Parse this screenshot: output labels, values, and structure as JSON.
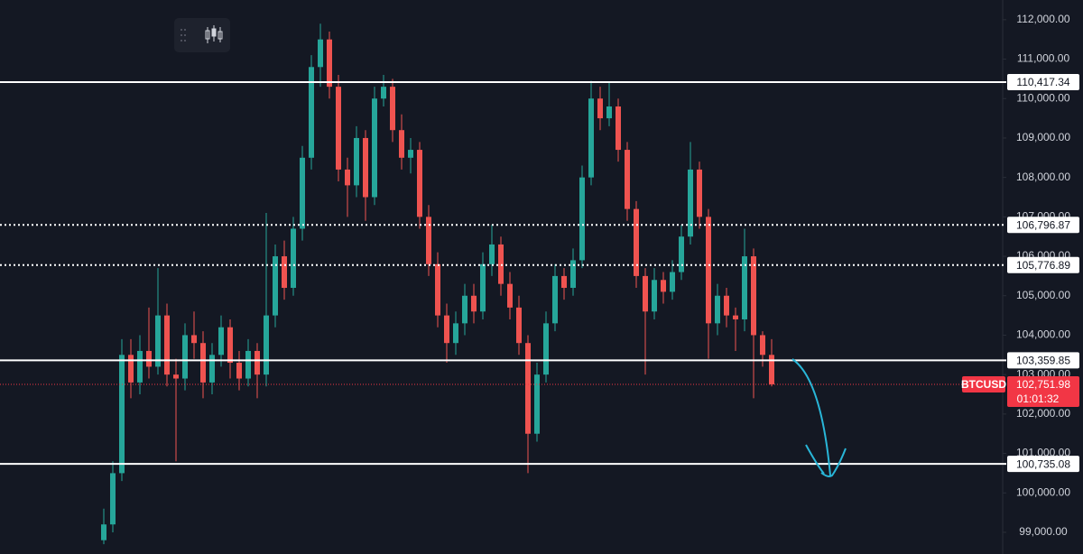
{
  "chart_data": {
    "type": "candlestick",
    "ylim": [
      98450,
      112500
    ],
    "yticks": [
      {
        "value": 112000,
        "label": "112,000.00"
      },
      {
        "value": 111000,
        "label": "111,000.00"
      },
      {
        "value": 110000,
        "label": "110,000.00"
      },
      {
        "value": 109000,
        "label": "109,000.00"
      },
      {
        "value": 108000,
        "label": "108,000.00"
      },
      {
        "value": 107000,
        "label": "107,000.00"
      },
      {
        "value": 106000,
        "label": "106,000.00"
      },
      {
        "value": 105000,
        "label": "105,000.00"
      },
      {
        "value": 104000,
        "label": "104,000.00"
      },
      {
        "value": 103000,
        "label": "103,000.00"
      },
      {
        "value": 102000,
        "label": "102,000.00"
      },
      {
        "value": 101000,
        "label": "101,000.00"
      },
      {
        "value": 100000,
        "label": "100,000.00"
      },
      {
        "value": 99000,
        "label": "99,000.00"
      }
    ],
    "up_color": "#26a69a",
    "down_color": "#ef5350",
    "open": [
      98800,
      99200,
      100500,
      103500,
      102800,
      103600,
      103200,
      104500,
      103000,
      102900,
      104000,
      103800,
      102800,
      103500,
      104200,
      103300,
      102900,
      103600,
      103000,
      104500,
      106000,
      105200,
      106700,
      108500,
      110800,
      111500,
      110300,
      108200,
      107800,
      109000,
      107500,
      110000,
      110300,
      109200,
      108500,
      108700,
      107000,
      105800,
      104500,
      103800,
      104300,
      105000,
      104600,
      105800,
      106300,
      105300,
      104700,
      103800,
      101500,
      103000,
      104300,
      105500,
      105200,
      105900,
      108000,
      110000,
      109500,
      109800,
      108700,
      107200,
      105500,
      104600,
      105400,
      105100,
      105600,
      106500,
      108200,
      107000,
      104300,
      105000,
      104500,
      104400,
      106000,
      104000,
      103500
    ],
    "high": [
      99600,
      100800,
      103900,
      103900,
      104000,
      104700,
      105700,
      104800,
      103400,
      104300,
      104600,
      104100,
      103800,
      104500,
      104400,
      103600,
      103900,
      103800,
      107100,
      106300,
      106400,
      107000,
      108800,
      111100,
      111900,
      111700,
      110600,
      108500,
      109300,
      109200,
      110300,
      110600,
      110500,
      109600,
      109000,
      108900,
      107300,
      106100,
      104800,
      104600,
      105300,
      105300,
      106100,
      106800,
      106500,
      105600,
      105000,
      104000,
      103300,
      104600,
      105800,
      105700,
      106200,
      108300,
      110450,
      110300,
      110400,
      110000,
      108900,
      107400,
      105700,
      105700,
      105600,
      105900,
      106800,
      108900,
      108400,
      107200,
      105300,
      105200,
      104700,
      106700,
      106200,
      104100,
      103900
    ],
    "low": [
      98700,
      99000,
      100300,
      102400,
      102500,
      102900,
      103000,
      102700,
      100800,
      102600,
      103400,
      102400,
      102500,
      103200,
      102900,
      102600,
      102700,
      102400,
      102700,
      104200,
      104900,
      105000,
      106400,
      108200,
      110300,
      110000,
      107900,
      107000,
      107500,
      106900,
      107300,
      109800,
      108900,
      108200,
      108100,
      106700,
      105500,
      104200,
      103300,
      103500,
      104000,
      104300,
      104400,
      105500,
      105000,
      104400,
      103500,
      100500,
      101300,
      102800,
      104100,
      104900,
      105000,
      105700,
      107800,
      109200,
      109300,
      108400,
      106900,
      105200,
      103000,
      104400,
      104800,
      104900,
      105400,
      106300,
      106700,
      103400,
      104000,
      104200,
      103600,
      104100,
      102400,
      103200,
      102700
    ],
    "close": [
      99200,
      100500,
      103500,
      102800,
      103600,
      103200,
      104500,
      103000,
      102900,
      104000,
      103800,
      102800,
      103500,
      104200,
      103300,
      102900,
      103600,
      103000,
      104500,
      106000,
      105200,
      106700,
      108500,
      110800,
      111500,
      110300,
      108200,
      107800,
      109000,
      107500,
      110000,
      110300,
      109200,
      108500,
      108700,
      107000,
      105800,
      104500,
      103800,
      104300,
      105000,
      104600,
      105800,
      106300,
      105300,
      104700,
      103800,
      101500,
      103000,
      104300,
      105500,
      105200,
      105900,
      108000,
      110000,
      109500,
      109800,
      108700,
      107200,
      105500,
      104600,
      105400,
      105100,
      105600,
      106500,
      108200,
      107000,
      104300,
      105000,
      104500,
      104400,
      106000,
      104000,
      103500,
      102751.98
    ],
    "levels": [
      {
        "value": 110417.34,
        "label": "110,417.34",
        "style": "solid"
      },
      {
        "value": 106796.87,
        "label": "106,796.87",
        "style": "dotted"
      },
      {
        "value": 105776.89,
        "label": "105,776.89",
        "style": "dotted"
      },
      {
        "value": 103359.85,
        "label": "103,359.85",
        "style": "solid"
      },
      {
        "value": 100735.08,
        "label": "100,735.08",
        "style": "solid"
      }
    ],
    "current_price": {
      "symbol": "BTCUSD",
      "value": 102751.98,
      "label": "102,751.98",
      "countdown": "01:01:32",
      "color": "#f23645"
    }
  }
}
